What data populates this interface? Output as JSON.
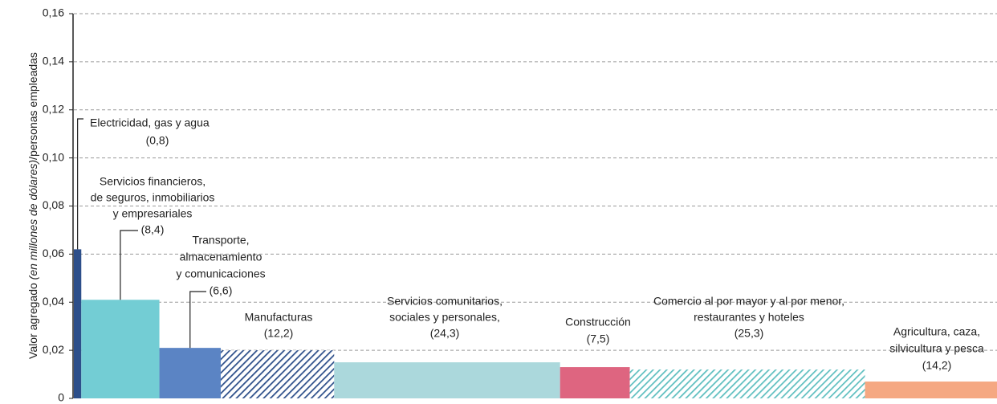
{
  "chart_data": {
    "type": "variable-width-bar",
    "y_label": [
      "Valor agregado ",
      "(en millones de dólares)",
      "/personas empleadas"
    ],
    "categories": [
      [
        "Electricidad, gas y agua"
      ],
      [
        "Servicios financieros,",
        "de seguros, inmobiliarios",
        "y empresariales"
      ],
      [
        "Transporte,",
        "almacenamiento",
        "y comunicaciones"
      ],
      [
        "Manufacturas"
      ],
      [
        "Servicios comunitarios,",
        "sociales y personales,"
      ],
      [
        "Construcción"
      ],
      [
        "Comercio al por mayor y al por menor,",
        "restaurantes y hoteles"
      ],
      [
        "Agricultura, caza,",
        "silvicultura y pesca"
      ]
    ],
    "values": [
      0.062,
      0.041,
      0.021,
      0.02,
      0.015,
      0.013,
      0.012,
      0.007
    ],
    "widths": [
      0.8,
      8.4,
      6.6,
      12.2,
      24.3,
      7.5,
      25.3,
      14.2
    ],
    "width_labels": [
      "(0,8)",
      "(8,4)",
      "(6,6)",
      "(12,2)",
      "(24,3)",
      "(7,5)",
      "(25,3)",
      "(14,2)"
    ],
    "colors": [
      "#2d4f8a",
      "#73cdd4",
      "#5b84c4",
      "#2d4f8a",
      "#abd8dc",
      "#de6580",
      "#5fbfc0",
      "#f5a882"
    ],
    "hatched": [
      false,
      false,
      false,
      true,
      false,
      false,
      true,
      false
    ],
    "ylim": [
      0,
      0.16
    ],
    "yticks": [
      0,
      {
        "value": 0.02,
        "label": "0,02"
      },
      {
        "value": 0.04,
        "label": "0,04"
      },
      {
        "value": 0.06,
        "label": "0,06"
      },
      {
        "value": 0.08,
        "label": "0,08"
      },
      {
        "value": 0.1,
        "label": "0,10"
      },
      {
        "value": 0.12,
        "label": "0,12"
      },
      {
        "value": 0.14,
        "label": "0,14"
      },
      {
        "value": 0.16,
        "label": "0,16"
      }
    ],
    "grid": true
  }
}
